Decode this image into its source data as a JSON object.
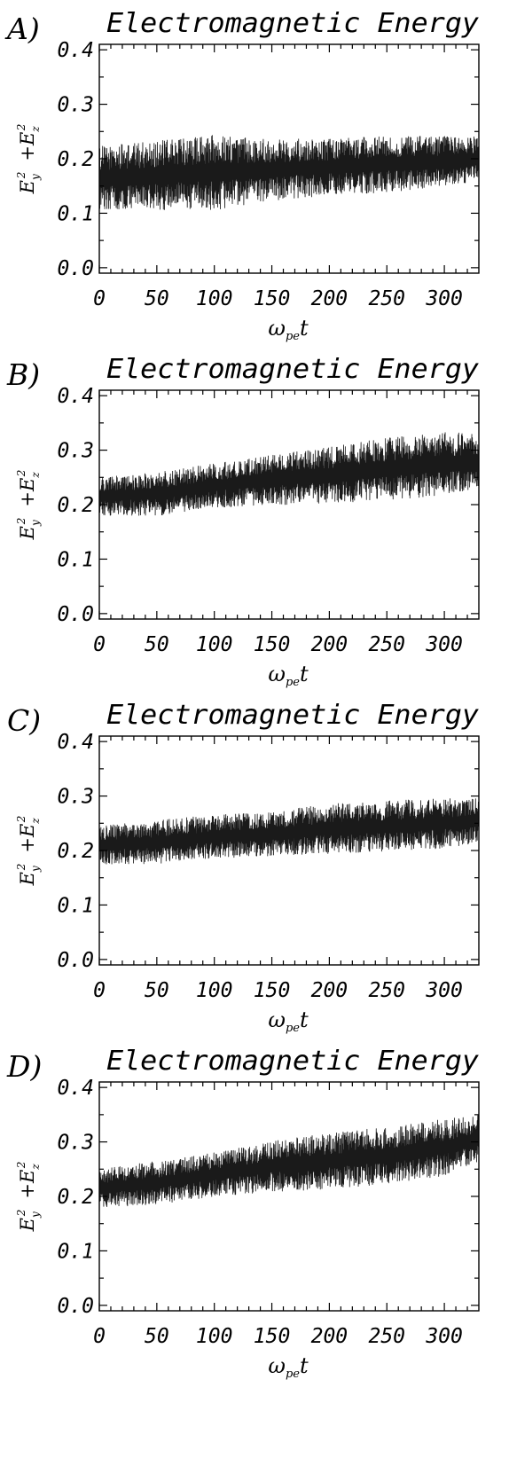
{
  "chart_data": [
    {
      "type": "line",
      "panel_label": "A)",
      "title": "Electromagnetic Energy",
      "xlabel": {
        "main": "ω",
        "sub": "pe",
        "tail": "t"
      },
      "ylabel": {
        "a": "E",
        "a_sub": "y",
        "a_sup": "2",
        "plus": "+",
        "b": "E",
        "b_sub": "z",
        "b_sup": "2"
      },
      "xlim": [
        0,
        330
      ],
      "ylim": [
        -0.01,
        0.41
      ],
      "xticks": [
        0,
        50,
        100,
        150,
        200,
        250,
        300
      ],
      "xtick_labels": [
        "0",
        "50",
        "100",
        "150",
        "200",
        "250",
        "300"
      ],
      "yticks": [
        0.0,
        0.1,
        0.2,
        0.3,
        0.4
      ],
      "ytick_labels": [
        "0.0",
        "0.1",
        "0.2",
        "0.3",
        "0.4"
      ],
      "series": [
        {
          "color": "#1a1a1a",
          "baseline": {
            "x": [
              0,
              50,
              100,
              150,
              200,
              250,
              300,
              330
            ],
            "y": [
              0.165,
              0.17,
              0.175,
              0.18,
              0.185,
              0.19,
              0.195,
              0.2
            ]
          },
          "amplitude": {
            "x": [
              0,
              50,
              100,
              150,
              200,
              250,
              300,
              330
            ],
            "y": [
              0.05,
              0.055,
              0.06,
              0.05,
              0.045,
              0.045,
              0.04,
              0.035
            ]
          },
          "extremes": {
            "max": 0.28,
            "min": 0.09
          }
        }
      ]
    },
    {
      "type": "line",
      "panel_label": "B)",
      "title": "Electromagnetic Energy",
      "xlabel": {
        "main": "ω",
        "sub": "pe",
        "tail": "t"
      },
      "ylabel": {
        "a": "E",
        "a_sub": "y",
        "a_sup": "2",
        "plus": "+",
        "b": "E",
        "b_sub": "z",
        "b_sup": "2"
      },
      "xlim": [
        0,
        330
      ],
      "ylim": [
        -0.01,
        0.41
      ],
      "xticks": [
        0,
        50,
        100,
        150,
        200,
        250,
        300
      ],
      "xtick_labels": [
        "0",
        "50",
        "100",
        "150",
        "200",
        "250",
        "300"
      ],
      "yticks": [
        0.0,
        0.1,
        0.2,
        0.3,
        0.4
      ],
      "ytick_labels": [
        "0.0",
        "0.1",
        "0.2",
        "0.3",
        "0.4"
      ],
      "series": [
        {
          "color": "#1a1a1a",
          "baseline": {
            "x": [
              0,
              50,
              100,
              150,
              200,
              250,
              300,
              330
            ],
            "y": [
              0.215,
              0.22,
              0.235,
              0.245,
              0.255,
              0.265,
              0.275,
              0.28
            ]
          },
          "amplitude": {
            "x": [
              0,
              50,
              100,
              150,
              200,
              250,
              300,
              330
            ],
            "y": [
              0.03,
              0.035,
              0.035,
              0.04,
              0.045,
              0.05,
              0.05,
              0.045
            ]
          },
          "extremes": {
            "max": 0.365,
            "min": 0.14
          }
        }
      ]
    },
    {
      "type": "line",
      "panel_label": "C)",
      "title": "Electromagnetic Energy",
      "xlabel": {
        "main": "ω",
        "sub": "pe",
        "tail": "t"
      },
      "ylabel": {
        "a": "E",
        "a_sub": "y",
        "a_sup": "2",
        "plus": "+",
        "b": "E",
        "b_sub": "z",
        "b_sup": "2"
      },
      "xlim": [
        0,
        330
      ],
      "ylim": [
        -0.01,
        0.41
      ],
      "xticks": [
        0,
        50,
        100,
        150,
        200,
        250,
        300
      ],
      "xtick_labels": [
        "0",
        "50",
        "100",
        "150",
        "200",
        "250",
        "300"
      ],
      "yticks": [
        0.0,
        0.1,
        0.2,
        0.3,
        0.4
      ],
      "ytick_labels": [
        "0.0",
        "0.1",
        "0.2",
        "0.3",
        "0.4"
      ],
      "series": [
        {
          "color": "#1a1a1a",
          "baseline": {
            "x": [
              0,
              50,
              100,
              150,
              200,
              250,
              300,
              330
            ],
            "y": [
              0.21,
              0.215,
              0.225,
              0.23,
              0.24,
              0.245,
              0.25,
              0.255
            ]
          },
          "amplitude": {
            "x": [
              0,
              50,
              100,
              150,
              200,
              250,
              300,
              330
            ],
            "y": [
              0.03,
              0.035,
              0.035,
              0.035,
              0.04,
              0.04,
              0.04,
              0.035
            ]
          },
          "extremes": {
            "max": 0.32,
            "min": 0.135
          }
        }
      ]
    },
    {
      "type": "line",
      "panel_label": "D)",
      "title": "Electromagnetic Energy",
      "xlabel": {
        "main": "ω",
        "sub": "pe",
        "tail": "t"
      },
      "ylabel": {
        "a": "E",
        "a_sub": "y",
        "a_sup": "2",
        "plus": "+",
        "b": "E",
        "b_sub": "z",
        "b_sup": "2"
      },
      "xlim": [
        0,
        330
      ],
      "ylim": [
        -0.01,
        0.41
      ],
      "xticks": [
        0,
        50,
        100,
        150,
        200,
        250,
        300
      ],
      "xtick_labels": [
        "0",
        "50",
        "100",
        "150",
        "200",
        "250",
        "300"
      ],
      "yticks": [
        0.0,
        0.1,
        0.2,
        0.3,
        0.4
      ],
      "ytick_labels": [
        "0.0",
        "0.1",
        "0.2",
        "0.3",
        "0.4"
      ],
      "series": [
        {
          "color": "#1a1a1a",
          "baseline": {
            "x": [
              0,
              50,
              100,
              150,
              200,
              250,
              300,
              330
            ],
            "y": [
              0.215,
              0.225,
              0.24,
              0.255,
              0.265,
              0.275,
              0.29,
              0.305
            ]
          },
          "amplitude": {
            "x": [
              0,
              50,
              100,
              150,
              200,
              250,
              300,
              330
            ],
            "y": [
              0.03,
              0.035,
              0.035,
              0.04,
              0.045,
              0.045,
              0.045,
              0.04
            ]
          },
          "extremes": {
            "max": 0.395,
            "min": 0.145
          }
        }
      ]
    }
  ]
}
